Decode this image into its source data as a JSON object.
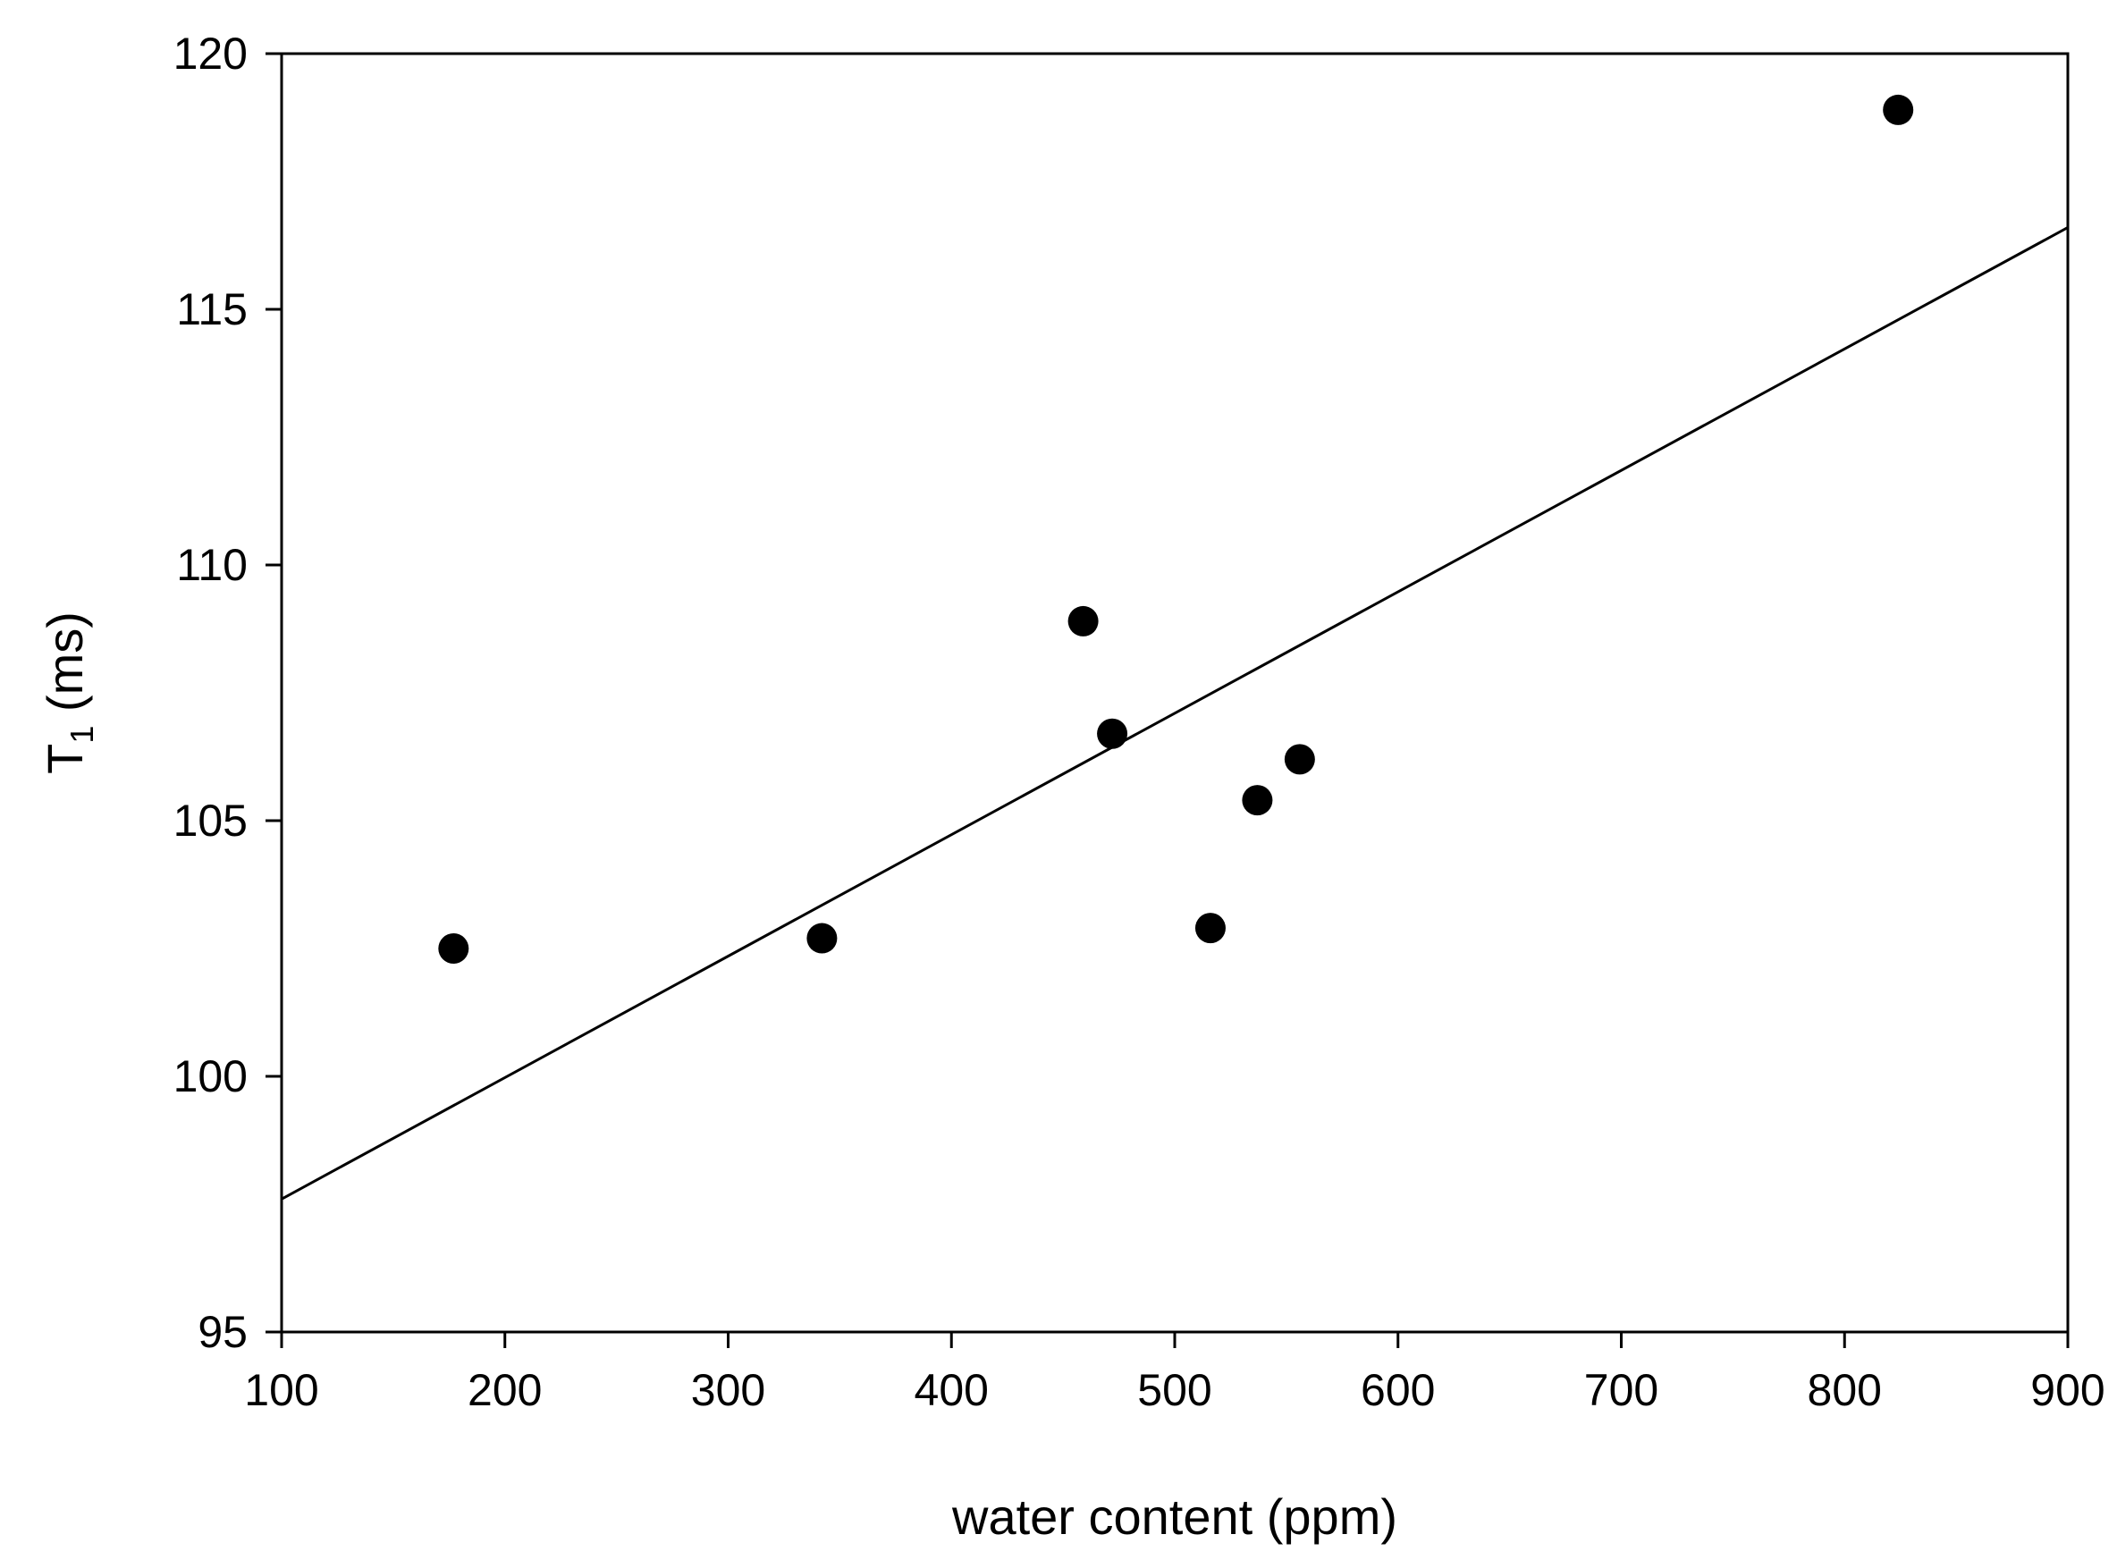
{
  "chart_data": {
    "type": "scatter",
    "title": "",
    "xlabel": "water content (ppm)",
    "ylabel_main": "T",
    "ylabel_sub": "1",
    "ylabel_rest": " (ms)",
    "xlim": [
      100,
      900
    ],
    "ylim": [
      95,
      120
    ],
    "xticks": [
      100,
      200,
      300,
      400,
      500,
      600,
      700,
      800,
      900
    ],
    "yticks": [
      95,
      100,
      105,
      110,
      115,
      120
    ],
    "grid": false,
    "legend": "none",
    "marker_color": "#000000",
    "points": [
      {
        "x": 177,
        "y": 102.5
      },
      {
        "x": 342,
        "y": 102.7
      },
      {
        "x": 459,
        "y": 108.9
      },
      {
        "x": 472,
        "y": 106.7
      },
      {
        "x": 516,
        "y": 102.9
      },
      {
        "x": 537,
        "y": 105.4
      },
      {
        "x": 556,
        "y": 106.2
      },
      {
        "x": 824,
        "y": 118.9
      }
    ],
    "fit_line": {
      "x": [
        100,
        900
      ],
      "y": [
        97.6,
        116.6
      ]
    }
  }
}
